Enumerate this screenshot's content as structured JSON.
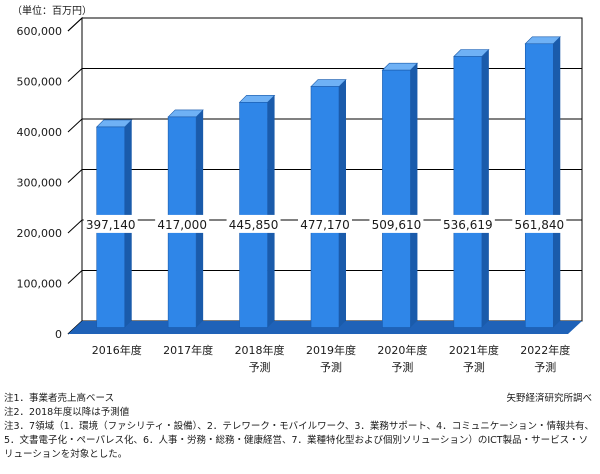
{
  "chart_data": {
    "type": "bar",
    "style": "3d-column",
    "unit_label": "（単位：百万円）",
    "categories": [
      [
        "2016年度"
      ],
      [
        "2017年度"
      ],
      [
        "2018年度",
        "予測"
      ],
      [
        "2019年度",
        "予測"
      ],
      [
        "2020年度",
        "予測"
      ],
      [
        "2021年度",
        "予測"
      ],
      [
        "2022年度",
        "予測"
      ]
    ],
    "values": [
      397140,
      417000,
      445850,
      477170,
      509610,
      536619,
      561840
    ],
    "value_labels": [
      "397,140",
      "417,000",
      "445,850",
      "477,170",
      "509,610",
      "536,619",
      "561,840"
    ],
    "ylim": [
      0,
      600000
    ],
    "yticks": [
      0,
      100000,
      200000,
      300000,
      400000,
      500000,
      600000
    ],
    "ytick_labels": [
      "0",
      "100,000",
      "200,000",
      "300,000",
      "400,000",
      "500,000",
      "600,000"
    ],
    "grid": true,
    "legend": "none",
    "colors": {
      "bar_front": "#2f86e8",
      "bar_side": "#1a5bab",
      "bar_top": "#6fb1f5",
      "floor": "#1f62b8",
      "grid": "#000000"
    }
  },
  "notes": {
    "note1": "注1．事業者売上高ベース",
    "note2": "注2．2018年度以降は予測値",
    "note3": "注3．7領域（1．環境（ファシリティ・設備）、2．テレワーク・モバイルワーク、3．業務サポート、4．コミュニケーション・情報共有、5．文書電子化・ペーパレス化、6．人事・労務・総務・健康経営、7．業種特化型および個別ソリューション）のICT製品・サービス・ソリューションを対象とした。"
  },
  "source": "矢野経済研究所調べ"
}
